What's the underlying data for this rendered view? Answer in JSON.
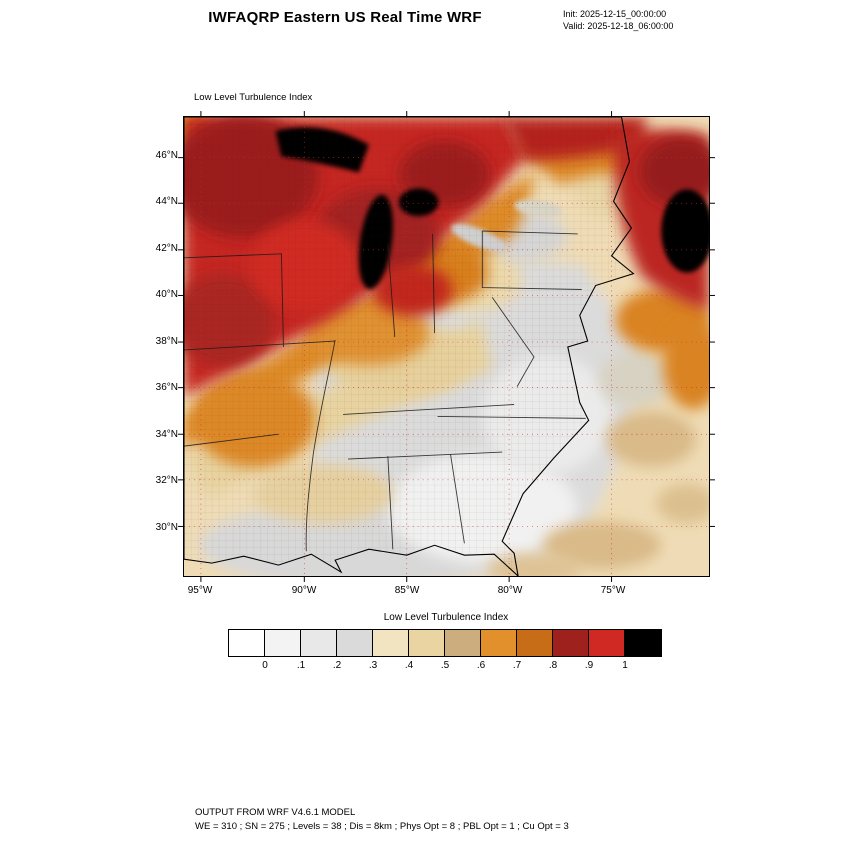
{
  "header": {
    "title": "IWFAQRP Eastern US Real Time WRF",
    "init_label": "Init: 2025-12-15_00:00:00",
    "valid_label": "Valid: 2025-12-18_06:00:00"
  },
  "map": {
    "field_label": "Low Level Turbulence Index",
    "lat_labels": [
      "46°N",
      "44°N",
      "42°N",
      "40°N",
      "38°N",
      "36°N",
      "34°N",
      "32°N",
      "30°N"
    ],
    "lon_labels": [
      "95°W",
      "90°W",
      "85°W",
      "80°W",
      "75°W"
    ]
  },
  "colorbar": {
    "title": "Low Level Turbulence Index",
    "tick_labels": [
      "0",
      ".1",
      ".2",
      ".3",
      ".4",
      ".5",
      ".6",
      ".7",
      ".8",
      ".9",
      "1"
    ],
    "colors": [
      "#ffffff",
      "#f3f3f3",
      "#e8e8e8",
      "#dadada",
      "#f2e4c0",
      "#e9d4a2",
      "#ccae7e",
      "#e1902c",
      "#c76c17",
      "#9e211e",
      "#d02823",
      "#000000"
    ]
  },
  "footer": {
    "line1": "OUTPUT FROM WRF V4.6.1 MODEL",
    "line2": "WE = 310 ; SN = 275 ; Levels = 38 ; Dis = 8km ; Phys Opt = 8 ; PBL Opt = 1 ; Cu Opt = 3"
  },
  "chart_data": {
    "type": "heatmap",
    "title": "Low Level Turbulence Index",
    "model_header": "IWFAQRP Eastern US Real Time WRF",
    "init_time": "2025-12-15_00:00:00",
    "valid_time": "2025-12-18_06:00:00",
    "x_ticks": [
      "95°W",
      "90°W",
      "85°W",
      "80°W",
      "75°W"
    ],
    "y_ticks": [
      "46°N",
      "44°N",
      "42°N",
      "40°N",
      "38°N",
      "36°N",
      "34°N",
      "32°N",
      "30°N"
    ],
    "levels": [
      0,
      0.1,
      0.2,
      0.3,
      0.4,
      0.5,
      0.6,
      0.7,
      0.8,
      0.9,
      1
    ],
    "level_colors": [
      "#ffffff",
      "#f3f3f3",
      "#e8e8e8",
      "#dadada",
      "#f2e4c0",
      "#e9d4a2",
      "#ccae7e",
      "#e1902c",
      "#c76c17",
      "#9e211e",
      "#d02823",
      "#000000"
    ],
    "legend_position": "bottom",
    "regions": [
      {
        "area": "Upper Midwest and western Great Lakes",
        "approx_value": "0.8-1.0 (red/dark red); >1 (black) over Lakes Superior and Michigan"
      },
      {
        "area": "Missouri/Arkansas through Illinois-Indiana-Michigan band",
        "approx_value": "0.6-0.8 (orange)"
      },
      {
        "area": "Mid-South / Ohio Valley",
        "approx_value": "0.4-0.6 (tan)"
      },
      {
        "area": "Southeast, Gulf Coast and Mid-Atlantic",
        "approx_value": "0-0.3 (white/light gray)"
      },
      {
        "area": "New England and adjacent Atlantic",
        "approx_value": "0.8-1.0 (red) with >1 (black) maximum offshore"
      },
      {
        "area": "Western Atlantic / Gulf of Mexico waters",
        "approx_value": "0.3-0.5 (tan)"
      }
    ]
  }
}
